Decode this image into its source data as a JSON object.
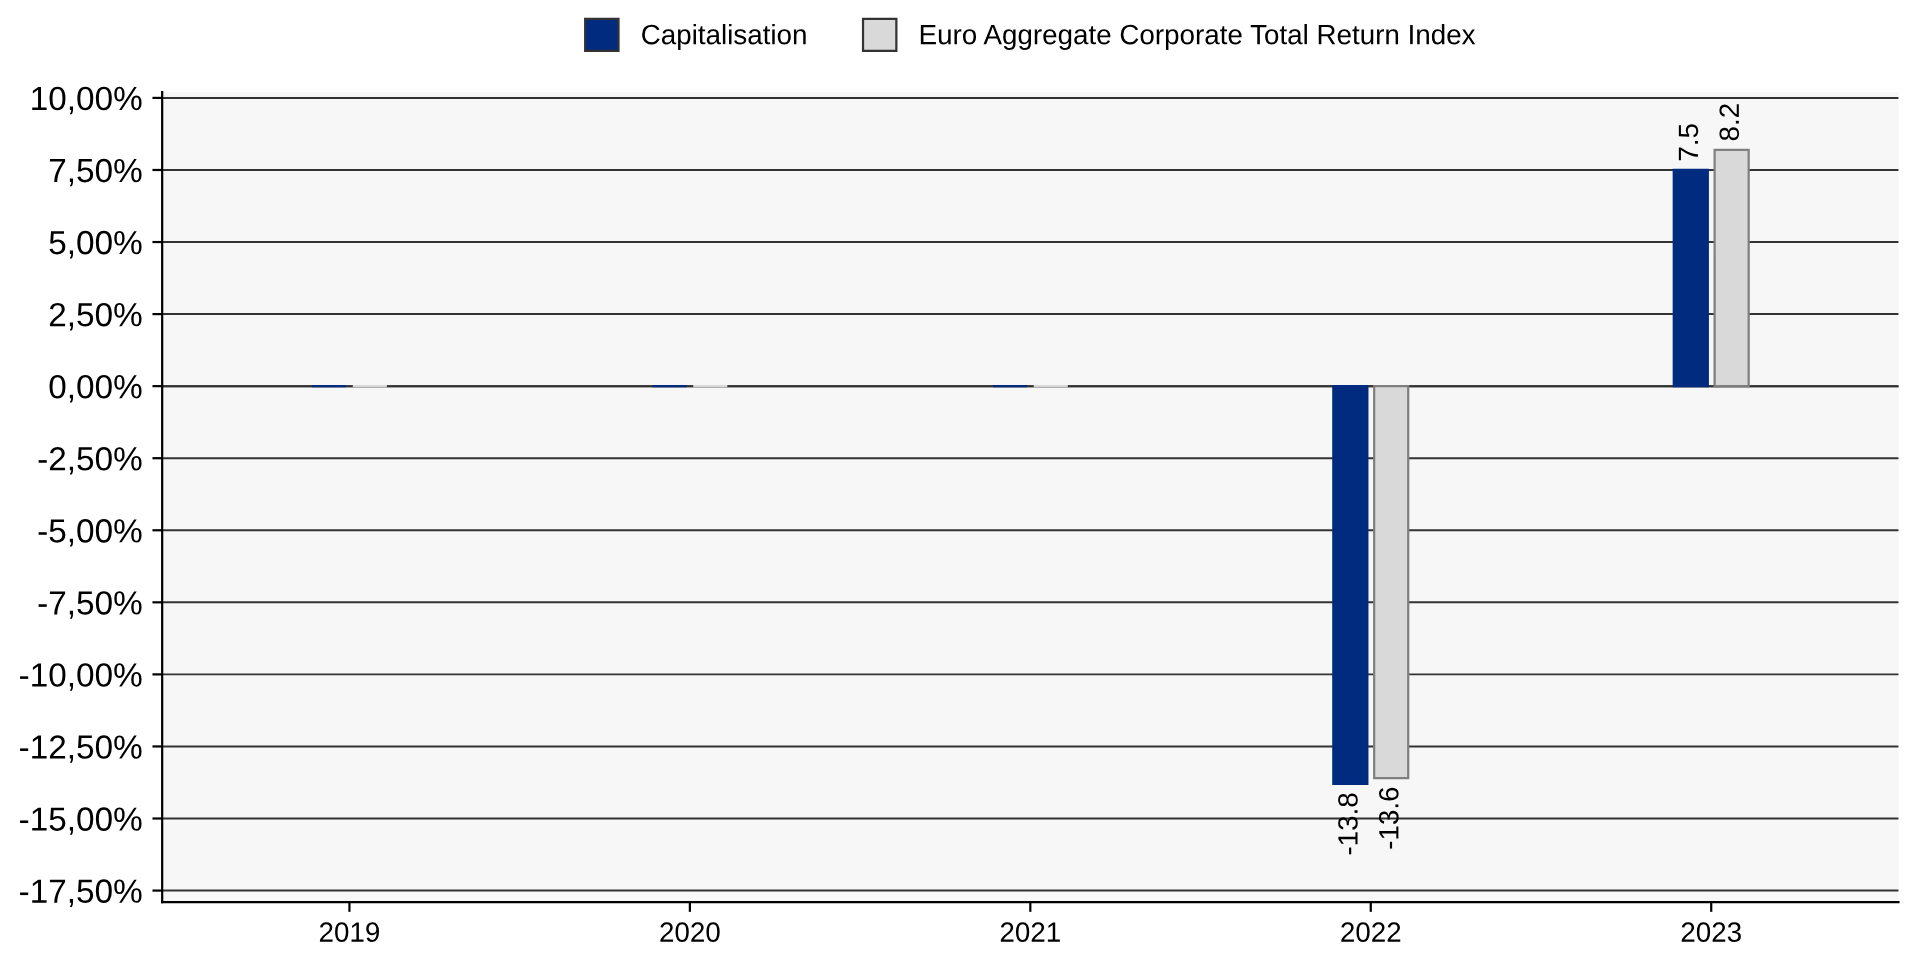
{
  "chart_data": {
    "type": "bar",
    "categories": [
      "2019",
      "2020",
      "2021",
      "2022",
      "2023"
    ],
    "series": [
      {
        "name": "Capitalisation",
        "color": "#002b7f",
        "values": [
          0,
          0,
          0,
          -13.8,
          7.5
        ],
        "value_labels": [
          null,
          null,
          null,
          "-13.8",
          "7.5"
        ]
      },
      {
        "name": "Euro Aggregate Corporate Total Return Index",
        "color": "#d9d9d9",
        "values": [
          0,
          0,
          0,
          -13.6,
          8.2
        ],
        "value_labels": [
          null,
          null,
          null,
          "-13.6",
          "8.2"
        ]
      }
    ],
    "ylim": [
      -17.9,
      10.2
    ],
    "yticks": [
      {
        "value": 10,
        "label": "10,00%"
      },
      {
        "value": 7.5,
        "label": "7,50%"
      },
      {
        "value": 5,
        "label": "5,00%"
      },
      {
        "value": 2.5,
        "label": "2,50%"
      },
      {
        "value": 0,
        "label": "0,00%"
      },
      {
        "value": -2.5,
        "label": "-2,50%"
      },
      {
        "value": -5,
        "label": "-5,00%"
      },
      {
        "value": -7.5,
        "label": "-7,50%"
      },
      {
        "value": -10,
        "label": "-10,00%"
      },
      {
        "value": -12.5,
        "label": "-12,50%"
      },
      {
        "value": -15,
        "label": "-15,00%"
      },
      {
        "value": -17.5,
        "label": "-17,50%"
      }
    ],
    "grid": "y",
    "legend": "top"
  }
}
